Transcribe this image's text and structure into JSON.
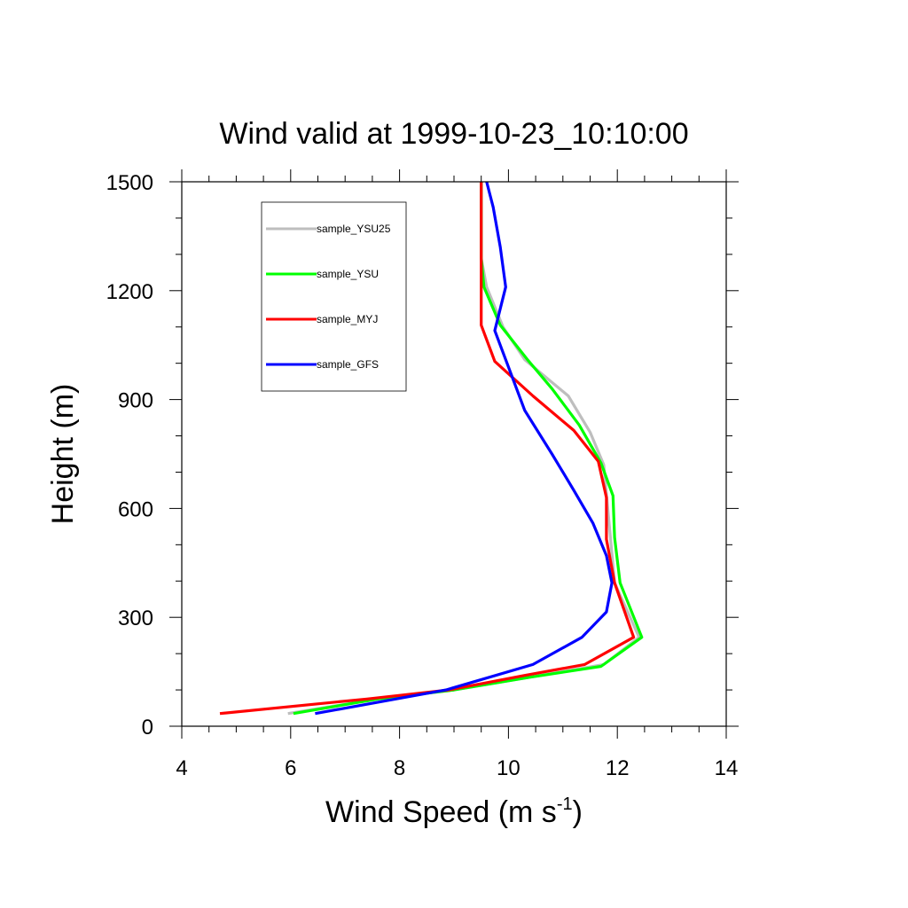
{
  "chart_data": {
    "type": "line",
    "title": "Wind valid at 1999-10-23_10:10:00",
    "xlabel": "Wind Speed (m s",
    "xlabel_sup": "-1",
    "xlabel_end": ")",
    "ylabel": "Height (m)",
    "xlim": [
      4,
      14
    ],
    "ylim": [
      0,
      1500
    ],
    "x_ticks": [
      4,
      6,
      8,
      10,
      12,
      14
    ],
    "y_ticks": [
      0,
      300,
      600,
      900,
      1200,
      1500
    ],
    "x_tick_labels": [
      "4",
      "6",
      "8",
      "10",
      "12",
      "14"
    ],
    "y_tick_labels": [
      "0",
      "300",
      "600",
      "900",
      "1200",
      "1500"
    ],
    "legend_position": "top-left",
    "series": [
      {
        "name": "sample_YSU25",
        "color": "#bebebe",
        "points": [
          [
            5.95,
            35
          ],
          [
            7.6,
            75
          ],
          [
            9.0,
            100
          ],
          [
            10.4,
            135
          ],
          [
            11.75,
            170
          ],
          [
            12.4,
            245
          ],
          [
            11.95,
            395
          ],
          [
            11.75,
            720
          ],
          [
            11.5,
            810
          ],
          [
            11.1,
            910
          ],
          [
            10.3,
            1010
          ],
          [
            9.9,
            1100
          ],
          [
            9.6,
            1210
          ],
          [
            9.5,
            1290
          ],
          [
            9.5,
            1500
          ]
        ]
      },
      {
        "name": "sample_YSU",
        "color": "#00ff00",
        "points": [
          [
            6.05,
            35
          ],
          [
            7.6,
            75
          ],
          [
            9.0,
            100
          ],
          [
            10.4,
            135
          ],
          [
            11.7,
            165
          ],
          [
            12.45,
            245
          ],
          [
            12.05,
            395
          ],
          [
            11.95,
            520
          ],
          [
            11.92,
            635
          ],
          [
            11.7,
            725
          ],
          [
            11.3,
            830
          ],
          [
            10.8,
            930
          ],
          [
            10.35,
            1010
          ],
          [
            9.85,
            1105
          ],
          [
            9.55,
            1210
          ],
          [
            9.5,
            1290
          ],
          [
            9.5,
            1500
          ]
        ]
      },
      {
        "name": "sample_MYJ",
        "color": "#ff0000",
        "points": [
          [
            4.7,
            35
          ],
          [
            7.4,
            75
          ],
          [
            8.9,
            100
          ],
          [
            10.3,
            140
          ],
          [
            11.4,
            170
          ],
          [
            12.3,
            245
          ],
          [
            11.95,
            395
          ],
          [
            11.8,
            515
          ],
          [
            11.8,
            630
          ],
          [
            11.65,
            730
          ],
          [
            11.2,
            815
          ],
          [
            10.45,
            910
          ],
          [
            9.75,
            1005
          ],
          [
            9.5,
            1105
          ],
          [
            9.5,
            1290
          ],
          [
            9.5,
            1500
          ]
        ]
      },
      {
        "name": "sample_GFS",
        "color": "#0000ff",
        "points": [
          [
            6.45,
            35
          ],
          [
            8.85,
            100
          ],
          [
            10.45,
            170
          ],
          [
            11.35,
            245
          ],
          [
            11.8,
            315
          ],
          [
            11.9,
            395
          ],
          [
            11.8,
            470
          ],
          [
            11.55,
            560
          ],
          [
            11.2,
            650
          ],
          [
            10.8,
            750
          ],
          [
            10.3,
            870
          ],
          [
            9.95,
            1010
          ],
          [
            9.75,
            1090
          ],
          [
            9.95,
            1210
          ],
          [
            9.85,
            1320
          ],
          [
            9.72,
            1430
          ],
          [
            9.6,
            1500
          ]
        ]
      }
    ]
  }
}
